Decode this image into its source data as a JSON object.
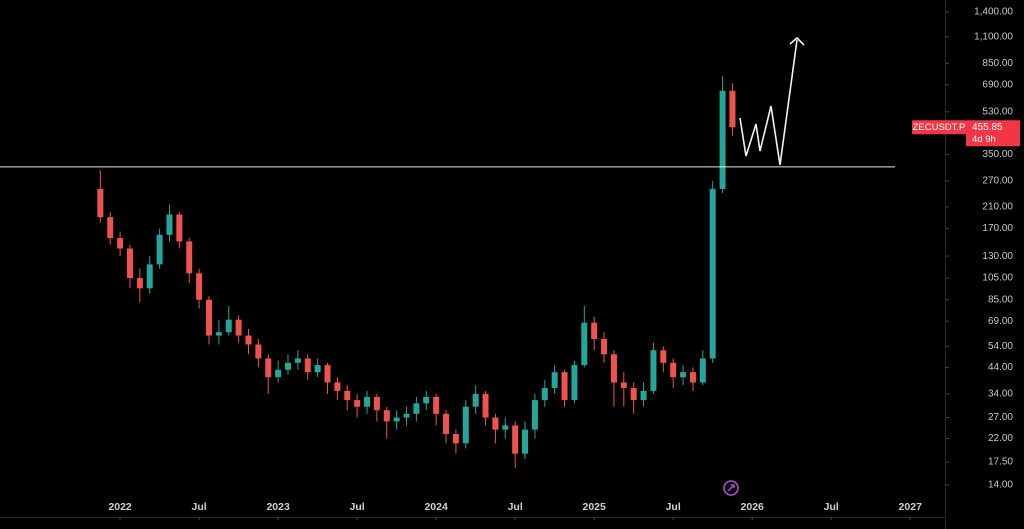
{
  "chart_data": {
    "type": "candlestick",
    "symbol": "ZECUSDT.P",
    "last_price": 455.85,
    "countdown": "4d 9h",
    "yscale": "log",
    "up_color": "#26a69a",
    "down_color": "#ef5350",
    "price_line": 310,
    "price_line_color": "#e6e6e6",
    "tag_color": "#f23645",
    "xlim": [
      2021.24,
      2027.22
    ],
    "xticks": [
      {
        "value": 2022,
        "label": "2022"
      },
      {
        "value": 2022.5,
        "label": "Jul"
      },
      {
        "value": 2023,
        "label": "2023"
      },
      {
        "value": 2023.5,
        "label": "Jul"
      },
      {
        "value": 2024,
        "label": "2024"
      },
      {
        "value": 2024.5,
        "label": "Jul"
      },
      {
        "value": 2025,
        "label": "2025"
      },
      {
        "value": 2025.5,
        "label": "Jul"
      },
      {
        "value": 2026,
        "label": "2026"
      },
      {
        "value": 2026.5,
        "label": "Jul"
      },
      {
        "value": 2027,
        "label": "2027"
      }
    ],
    "ylim": [
      11.3,
      1574
    ],
    "yticks": [
      {
        "value": 1400,
        "label": "1,400.00"
      },
      {
        "value": 1100,
        "label": "1,100.00"
      },
      {
        "value": 850,
        "label": "850.00"
      },
      {
        "value": 690,
        "label": "690.00"
      },
      {
        "value": 530,
        "label": "530.00"
      },
      {
        "value": 350,
        "label": "350.00"
      },
      {
        "value": 270,
        "label": "270.00"
      },
      {
        "value": 210,
        "label": "210.00"
      },
      {
        "value": 170,
        "label": "170.00"
      },
      {
        "value": 130,
        "label": "130.00"
      },
      {
        "value": 105,
        "label": "105.00"
      },
      {
        "value": 85,
        "label": "85.00"
      },
      {
        "value": 69,
        "label": "69.00"
      },
      {
        "value": 54,
        "label": "54.00"
      },
      {
        "value": 44,
        "label": "44.00"
      },
      {
        "value": 34,
        "label": "34.00"
      },
      {
        "value": 27,
        "label": "27.00"
      },
      {
        "value": 22,
        "label": "22.00"
      },
      {
        "value": 17.5,
        "label": "17.50"
      },
      {
        "value": 14,
        "label": "14.00"
      }
    ],
    "x": [
      2021.875,
      2021.9375,
      2022,
      2022.0625,
      2022.125,
      2022.1875,
      2022.25,
      2022.3125,
      2022.375,
      2022.4375,
      2022.5,
      2022.5625,
      2022.625,
      2022.6875,
      2022.75,
      2022.8125,
      2022.875,
      2022.9375,
      2023,
      2023.0625,
      2023.125,
      2023.1875,
      2023.25,
      2023.3125,
      2023.375,
      2023.4375,
      2023.5,
      2023.5625,
      2023.625,
      2023.6875,
      2023.75,
      2023.8125,
      2023.875,
      2023.9375,
      2024,
      2024.0625,
      2024.125,
      2024.1875,
      2024.25,
      2024.3125,
      2024.375,
      2024.4375,
      2024.5,
      2024.5625,
      2024.625,
      2024.6875,
      2024.75,
      2024.8125,
      2024.875,
      2024.9375,
      2025,
      2025.0625,
      2025.125,
      2025.1875,
      2025.25,
      2025.3125,
      2025.375,
      2025.4375,
      2025.5,
      2025.5625,
      2025.625,
      2025.6875,
      2025.75,
      2025.8125,
      2025.875
    ],
    "open": [
      250,
      190,
      155,
      140,
      105,
      95,
      120,
      160,
      195,
      150,
      110,
      85,
      60,
      62,
      70,
      60,
      55,
      48,
      40,
      43,
      46,
      48,
      42,
      45,
      38,
      35,
      32,
      30,
      33,
      29,
      26,
      27,
      28,
      31,
      33,
      28,
      23,
      21,
      30,
      34,
      27,
      24,
      25,
      19,
      24,
      32,
      36,
      42,
      32,
      45,
      68,
      58,
      50,
      38,
      36,
      32,
      35,
      52,
      46,
      40,
      42,
      38,
      48,
      250,
      650
    ],
    "high": [
      300,
      200,
      165,
      145,
      115,
      130,
      170,
      215,
      200,
      155,
      115,
      88,
      70,
      80,
      73,
      64,
      58,
      50,
      47,
      50,
      52,
      50,
      48,
      46,
      40,
      37,
      34,
      35,
      34,
      30,
      29,
      30,
      33,
      35,
      34,
      29,
      24,
      32,
      37,
      35,
      28,
      27,
      26,
      26,
      34,
      39,
      45,
      43,
      47,
      80,
      72,
      62,
      52,
      42,
      38,
      38,
      56,
      54,
      48,
      45,
      44,
      52,
      270,
      750,
      700
    ],
    "low": [
      180,
      145,
      130,
      95,
      83,
      90,
      115,
      150,
      140,
      100,
      78,
      55,
      55,
      60,
      56,
      50,
      44,
      34,
      38,
      41,
      43,
      39,
      40,
      34,
      32,
      29,
      27,
      28,
      26,
      22,
      24,
      25,
      26,
      29,
      25,
      21,
      19,
      20,
      28,
      25,
      21,
      22,
      16.5,
      18,
      22,
      30,
      34,
      30,
      31,
      44,
      52,
      46,
      30,
      30,
      28,
      30,
      34,
      42,
      36,
      37,
      35,
      37,
      46,
      240,
      420
    ],
    "close": [
      190,
      155,
      140,
      105,
      95,
      120,
      160,
      195,
      150,
      110,
      85,
      60,
      62,
      70,
      60,
      55,
      48,
      40,
      43,
      46,
      48,
      42,
      45,
      38,
      35,
      32,
      30,
      33,
      29,
      26,
      27,
      28,
      31,
      33,
      28,
      23,
      21,
      30,
      34,
      27,
      24,
      25,
      19,
      24,
      32,
      36,
      42,
      32,
      45,
      68,
      58,
      50,
      38,
      36,
      32,
      35,
      52,
      46,
      40,
      42,
      38,
      48,
      250,
      650,
      455.85
    ]
  }
}
